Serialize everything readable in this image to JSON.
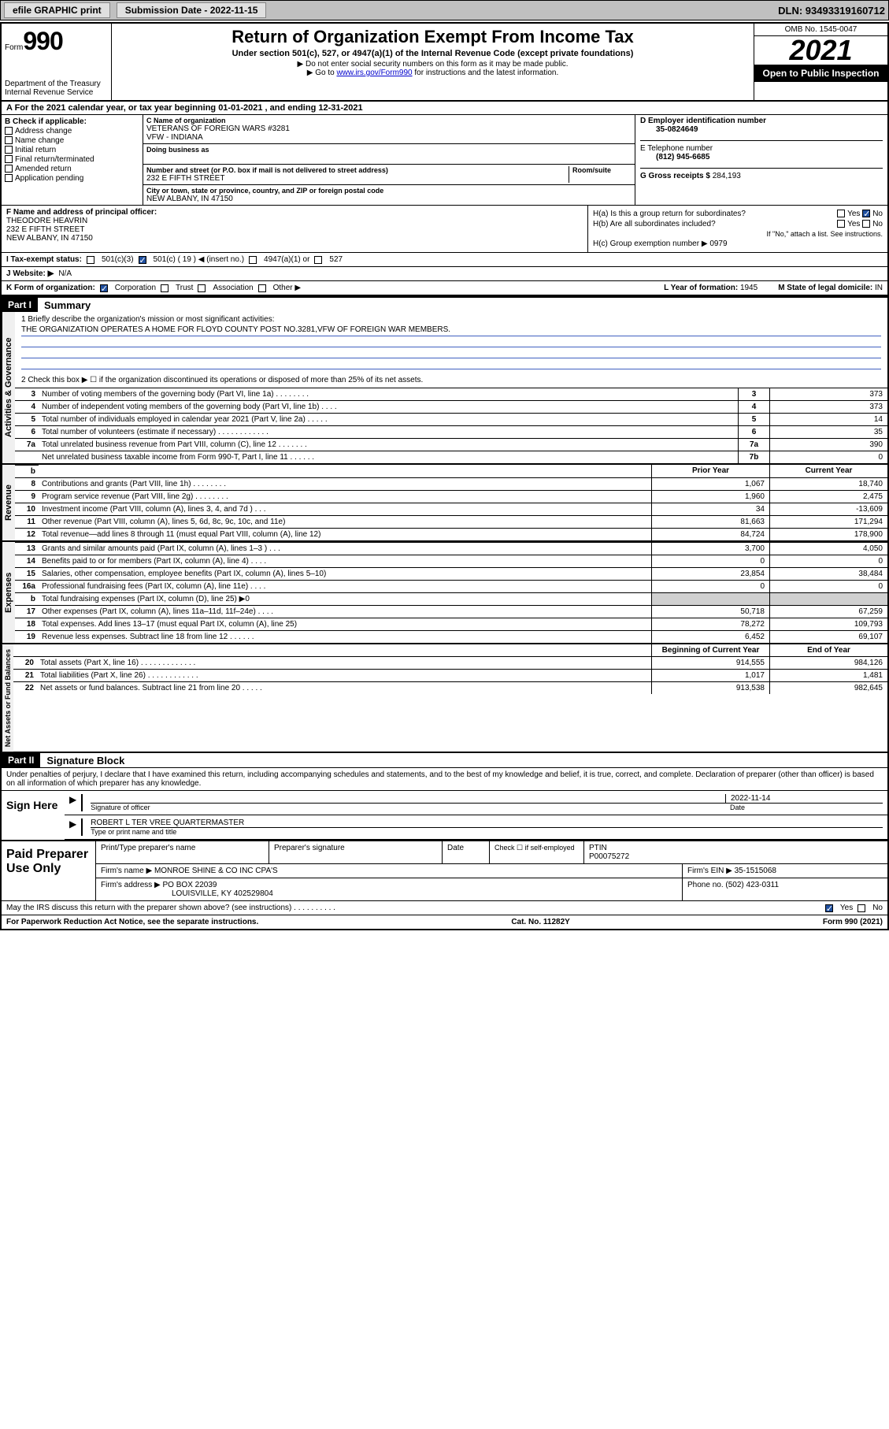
{
  "topbar": {
    "efile": "efile GRAPHIC print",
    "submission_label": "Submission Date - 2022-11-15",
    "dln": "DLN: 93493319160712"
  },
  "header": {
    "form_prefix": "Form",
    "form_no": "990",
    "title": "Return of Organization Exempt From Income Tax",
    "subtitle": "Under section 501(c), 527, or 4947(a)(1) of the Internal Revenue Code (except private foundations)",
    "instr1": "▶ Do not enter social security numbers on this form as it may be made public.",
    "instr2_pre": "▶ Go to ",
    "instr2_link": "www.irs.gov/Form990",
    "instr2_post": " for instructions and the latest information.",
    "omb": "OMB No. 1545-0047",
    "year": "2021",
    "open_public": "Open to Public Inspection",
    "dept": "Department of the Treasury",
    "irs": "Internal Revenue Service"
  },
  "period": {
    "line": "A For the 2021 calendar year, or tax year beginning 01-01-2021   , and ending 12-31-2021"
  },
  "box_b": {
    "label": "B Check if applicable:",
    "items": [
      "Address change",
      "Name change",
      "Initial return",
      "Final return/terminated",
      "Amended return",
      "Application pending"
    ]
  },
  "box_c": {
    "name_label": "C Name of organization",
    "name": "VETERANS OF FOREIGN WARS #3281",
    "name2": "VFW - INDIANA",
    "dba_label": "Doing business as",
    "addr_label": "Number and street (or P.O. box if mail is not delivered to street address)",
    "room_label": "Room/suite",
    "addr": "232 E FIFTH STREET",
    "city_label": "City or town, state or province, country, and ZIP or foreign postal code",
    "city": "NEW ALBANY, IN  47150"
  },
  "box_d": {
    "label": "D Employer identification number",
    "value": "35-0824649"
  },
  "box_e": {
    "label": "E Telephone number",
    "value": "(812) 945-6685"
  },
  "box_g": {
    "label": "G Gross receipts $",
    "value": "284,193"
  },
  "box_f": {
    "label": "F  Name and address of principal officer:",
    "name": "THEODORE HEAVRIN",
    "addr1": "232 E FIFTH STREET",
    "addr2": "NEW ALBANY, IN  47150"
  },
  "box_h": {
    "a": "H(a)  Is this a group return for subordinates?",
    "a_no": "No",
    "b": "H(b)  Are all subordinates included?",
    "b_note": "If \"No,\" attach a list. See instructions.",
    "c": "H(c)  Group exemption number ▶",
    "c_val": "0979"
  },
  "row_i": {
    "label": "I   Tax-exempt status:",
    "opt1": "501(c)(3)",
    "opt2": "501(c) ( 19 ) ◀ (insert no.)",
    "opt3": "4947(a)(1) or",
    "opt4": "527"
  },
  "row_j": {
    "label": "J   Website: ▶",
    "value": "N/A"
  },
  "row_k": {
    "label": "K Form of organization:",
    "opts": [
      "Corporation",
      "Trust",
      "Association",
      "Other ▶"
    ]
  },
  "row_l": {
    "label": "L Year of formation:",
    "value": "1945"
  },
  "row_m": {
    "label": "M State of legal domicile:",
    "value": "IN"
  },
  "part1": {
    "header": "Part I",
    "title": "Summary",
    "line1": "1  Briefly describe the organization's mission or most significant activities:",
    "mission": "THE ORGANIZATION OPERATES A HOME FOR FLOYD COUNTY POST NO.3281,VFW OF FOREIGN WAR MEMBERS.",
    "line2": "2    Check this box ▶ ☐  if the organization discontinued its operations or disposed of more than 25% of its net assets.",
    "vert1": "Activities & Governance",
    "vert2": "Revenue",
    "vert3": "Expenses",
    "vert4": "Net Assets or Fund Balances",
    "rows_gov": [
      {
        "n": "3",
        "l": "Number of voting members of the governing body (Part VI, line 1a)  .   .   .   .   .   .   .   .",
        "b": "3",
        "v": "373"
      },
      {
        "n": "4",
        "l": "Number of independent voting members of the governing body (Part VI, line 1b)  .   .   .   .",
        "b": "4",
        "v": "373"
      },
      {
        "n": "5",
        "l": "Total number of individuals employed in calendar year 2021 (Part V, line 2a)  .   .   .   .   .",
        "b": "5",
        "v": "14"
      },
      {
        "n": "6",
        "l": "Total number of volunteers (estimate if necessary)  .   .   .   .   .   .   .   .   .   .   .   .",
        "b": "6",
        "v": "35"
      },
      {
        "n": "7a",
        "l": "Total unrelated business revenue from Part VIII, column (C), line 12  .   .   .   .   .   .   .",
        "b": "7a",
        "v": "390"
      },
      {
        "n": "",
        "l": "Net unrelated business taxable income from Form 990-T, Part I, line 11  .   .   .   .   .   .",
        "b": "7b",
        "v": "0"
      }
    ],
    "prior_hdr": "Prior Year",
    "current_hdr": "Current Year",
    "rows_rev": [
      {
        "n": "8",
        "l": "Contributions and grants (Part VIII, line 1h)  .   .   .   .   .   .   .   .",
        "p": "1,067",
        "c": "18,740"
      },
      {
        "n": "9",
        "l": "Program service revenue (Part VIII, line 2g)  .   .   .   .   .   .   .   .",
        "p": "1,960",
        "c": "2,475"
      },
      {
        "n": "10",
        "l": "Investment income (Part VIII, column (A), lines 3, 4, and 7d )  .   .   .",
        "p": "34",
        "c": "-13,609"
      },
      {
        "n": "11",
        "l": "Other revenue (Part VIII, column (A), lines 5, 6d, 8c, 9c, 10c, and 11e)",
        "p": "81,663",
        "c": "171,294"
      },
      {
        "n": "12",
        "l": "Total revenue—add lines 8 through 11 (must equal Part VIII, column (A), line 12)",
        "p": "84,724",
        "c": "178,900"
      }
    ],
    "rows_exp": [
      {
        "n": "13",
        "l": "Grants and similar amounts paid (Part IX, column (A), lines 1–3 )  .   .   .",
        "p": "3,700",
        "c": "4,050"
      },
      {
        "n": "14",
        "l": "Benefits paid to or for members (Part IX, column (A), line 4)  .   .   .   .",
        "p": "0",
        "c": "0"
      },
      {
        "n": "15",
        "l": "Salaries, other compensation, employee benefits (Part IX, column (A), lines 5–10)",
        "p": "23,854",
        "c": "38,484"
      },
      {
        "n": "16a",
        "l": "Professional fundraising fees (Part IX, column (A), line 11e)  .   .   .   .",
        "p": "0",
        "c": "0"
      },
      {
        "n": "b",
        "l": "Total fundraising expenses (Part IX, column (D), line 25) ▶0",
        "p": "",
        "c": "",
        "shaded": true
      },
      {
        "n": "17",
        "l": "Other expenses (Part IX, column (A), lines 11a–11d, 11f–24e)  .   .   .   .",
        "p": "50,718",
        "c": "67,259"
      },
      {
        "n": "18",
        "l": "Total expenses. Add lines 13–17 (must equal Part IX, column (A), line 25)",
        "p": "78,272",
        "c": "109,793"
      },
      {
        "n": "19",
        "l": "Revenue less expenses. Subtract line 18 from line 12  .   .   .   .   .   .",
        "p": "6,452",
        "c": "69,107"
      }
    ],
    "begin_hdr": "Beginning of Current Year",
    "end_hdr": "End of Year",
    "rows_net": [
      {
        "n": "20",
        "l": "Total assets (Part X, line 16)  .   .   .   .   .   .   .   .   .   .   .   .   .",
        "p": "914,555",
        "c": "984,126"
      },
      {
        "n": "21",
        "l": "Total liabilities (Part X, line 26)  .   .   .   .   .   .   .   .   .   .   .   .",
        "p": "1,017",
        "c": "1,481"
      },
      {
        "n": "22",
        "l": "Net assets or fund balances. Subtract line 21 from line 20  .   .   .   .   .",
        "p": "913,538",
        "c": "982,645"
      }
    ]
  },
  "part2": {
    "header": "Part II",
    "title": "Signature Block",
    "perjury": "Under penalties of perjury, I declare that I have examined this return, including accompanying schedules and statements, and to the best of my knowledge and belief, it is true, correct, and complete. Declaration of preparer (other than officer) is based on all information of which preparer has any knowledge.",
    "sign_here": "Sign Here",
    "sig_officer": "Signature of officer",
    "date": "Date",
    "date_val": "2022-11-14",
    "name_title": "ROBERT L TER VREE QUARTERMASTER",
    "name_title_label": "Type or print name and title",
    "paid_prep": "Paid Preparer Use Only",
    "prep_name_label": "Print/Type preparer's name",
    "prep_sig_label": "Preparer's signature",
    "prep_date_label": "Date",
    "check_if": "Check ☐ if self-employed",
    "ptin_label": "PTIN",
    "ptin": "P00075272",
    "firm_name_label": "Firm's name     ▶",
    "firm_name": "MONROE SHINE & CO INC CPA'S",
    "firm_ein_label": "Firm's EIN ▶",
    "firm_ein": "35-1515068",
    "firm_addr_label": "Firm's address ▶",
    "firm_addr1": "PO BOX 22039",
    "firm_addr2": "LOUISVILLE, KY  402529804",
    "phone_label": "Phone no.",
    "phone": "(502) 423-0311",
    "discuss": "May the IRS discuss this return with the preparer shown above? (see instructions)  .   .   .   .   .   .   .   .   .   .",
    "yes": "Yes",
    "no": "No"
  },
  "footer": {
    "paperwork": "For Paperwork Reduction Act Notice, see the separate instructions.",
    "cat": "Cat. No. 11282Y",
    "form": "Form 990 (2021)"
  },
  "colors": {
    "link": "#0000cc",
    "check": "#2050a0",
    "rule": "#4060c0"
  }
}
